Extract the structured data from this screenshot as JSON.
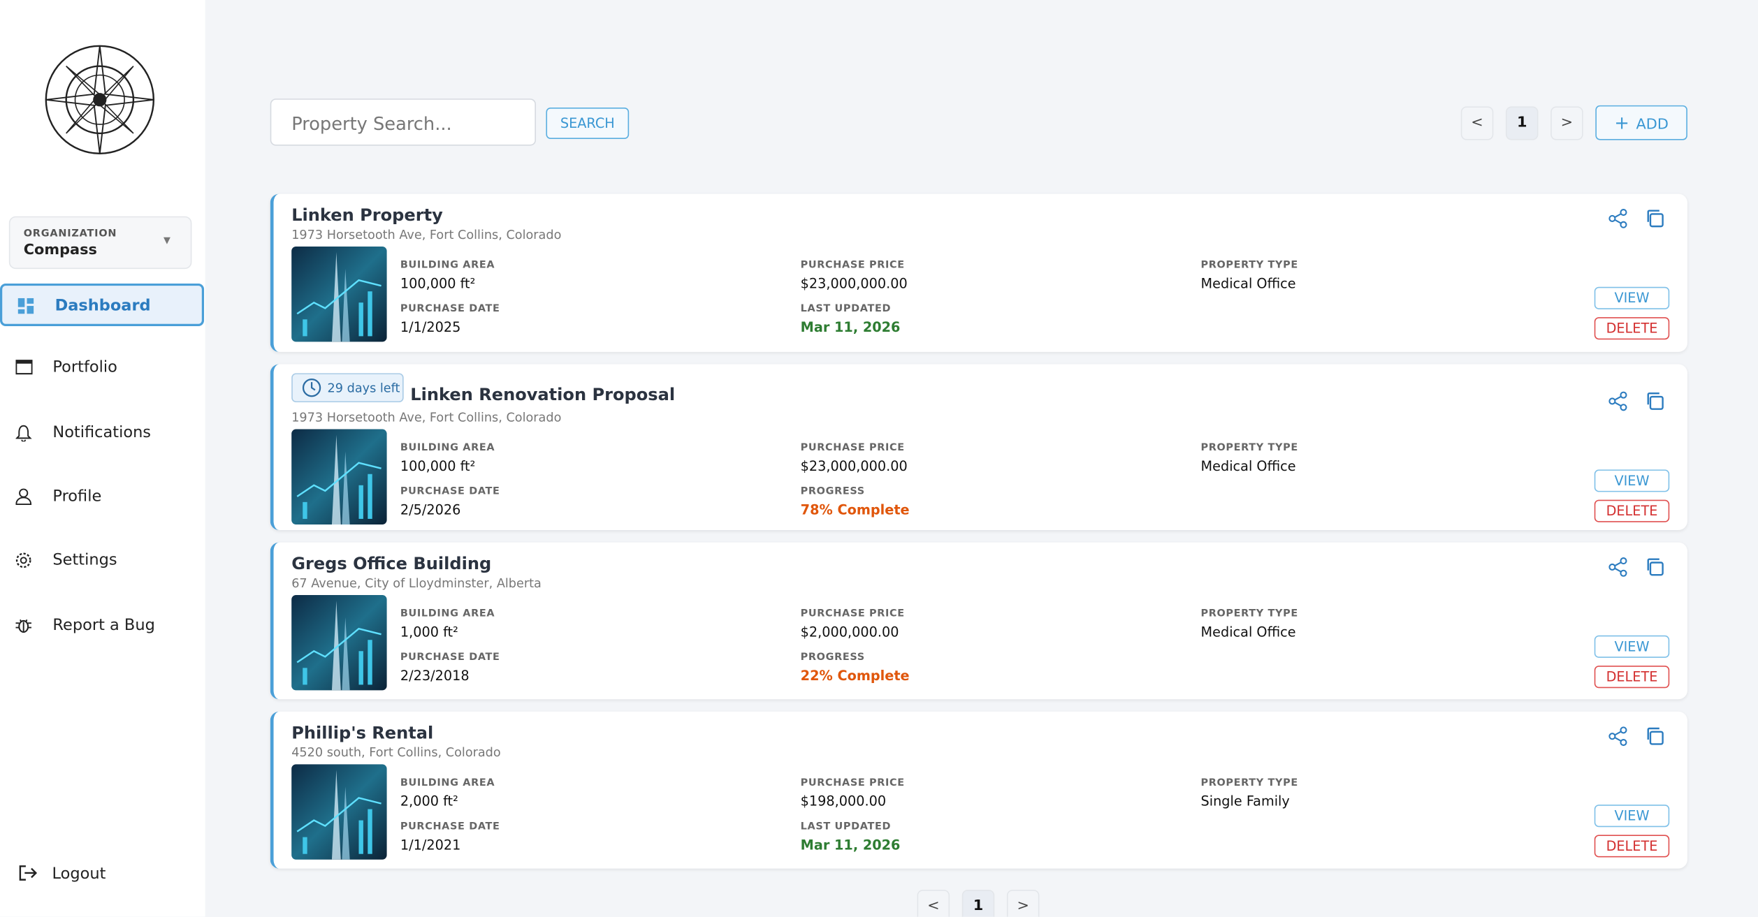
{
  "sidebar": {
    "organization_label": "ORGANIZATION",
    "organization": "Compass",
    "nav": [
      "Dashboard",
      "Portfolio",
      "Notifications",
      "Profile",
      "Settings",
      "Report a Bug"
    ],
    "logout": "Logout"
  },
  "toolbar": {
    "search_placeholder": "Property Search...",
    "search_button": "SEARCH",
    "pagination": {
      "prev": "<",
      "page": "1",
      "next": ">"
    },
    "add_button": "ADD"
  },
  "properties": [
    {
      "name": "Linken Property",
      "address": "1973 Horsetooth Ave, Fort Collins, Colorado",
      "fields": [
        {
          "label": "BUILDING AREA",
          "value": "100,000 ft²"
        },
        {
          "label": "PURCHASE DATE",
          "value": "1/1/2025"
        },
        {
          "label": "PURCHASE PRICE",
          "value": "$23,000,000.00"
        },
        {
          "label": "LAST UPDATED",
          "value": "Mar 11, 2026",
          "color": "#2e7d32"
        },
        {
          "label": "PROPERTY TYPE",
          "value": "Medical Office"
        }
      ],
      "actions": {
        "view": "VIEW",
        "delete": "DELETE"
      }
    },
    {
      "badge": "29 days left",
      "name": "Linken Renovation Proposal",
      "address": "1973 Horsetooth Ave, Fort Collins, Colorado",
      "fields": [
        {
          "label": "BUILDING AREA",
          "value": "100,000 ft²"
        },
        {
          "label": "PURCHASE DATE",
          "value": "2/5/2026"
        },
        {
          "label": "PURCHASE PRICE",
          "value": "$23,000,000.00"
        },
        {
          "label": "PROGRESS",
          "value": "78% Complete",
          "color": "#e0560b"
        },
        {
          "label": "PROPERTY TYPE",
          "value": "Medical Office"
        }
      ],
      "actions": {
        "view": "VIEW",
        "delete": "DELETE"
      }
    },
    {
      "name": "Gregs Office Building",
      "address": "67 Avenue, City of Lloydminster, Alberta",
      "fields": [
        {
          "label": "BUILDING AREA",
          "value": "1,000 ft²"
        },
        {
          "label": "PURCHASE DATE",
          "value": "2/23/2018"
        },
        {
          "label": "PURCHASE PRICE",
          "value": "$2,000,000.00"
        },
        {
          "label": "PROGRESS",
          "value": "22% Complete",
          "color": "#e0560b"
        },
        {
          "label": "PROPERTY TYPE",
          "value": "Medical Office"
        }
      ],
      "actions": {
        "view": "VIEW",
        "delete": "DELETE"
      }
    },
    {
      "name": "Phillip's Rental",
      "address": "4520 south, Fort Collins, Colorado",
      "fields": [
        {
          "label": "BUILDING AREA",
          "value": "2,000 ft²"
        },
        {
          "label": "PURCHASE DATE",
          "value": "1/1/2021"
        },
        {
          "label": "PURCHASE PRICE",
          "value": "$198,000.00"
        },
        {
          "label": "LAST UPDATED",
          "value": "Mar 11, 2026",
          "color": "#2e7d32"
        },
        {
          "label": "PROPERTY TYPE",
          "value": "Single Family"
        }
      ],
      "actions": {
        "view": "VIEW",
        "delete": "DELETE"
      }
    }
  ],
  "footer_pagination": {
    "prev": "<",
    "page": "1",
    "next": ">"
  }
}
